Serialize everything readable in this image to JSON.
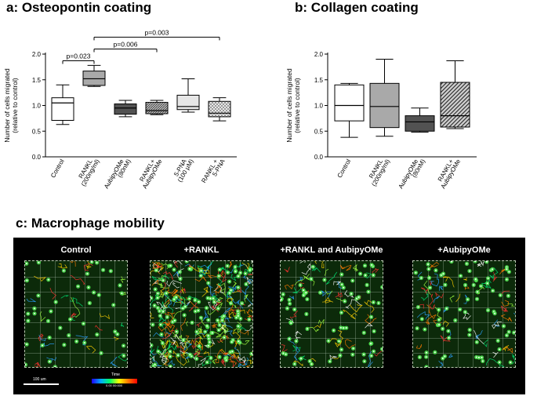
{
  "panel_a": {
    "title": "a: Osteopontin coating"
  },
  "panel_b": {
    "title": "b: Collagen coating"
  },
  "panel_c": {
    "title": "c: Macrophage mobility"
  },
  "chart_data": [
    {
      "type": "boxplot",
      "title": "a: Osteopontin coating",
      "ylabel": "Number of cells migrated (relative to control)",
      "ylim": [
        0,
        2.0
      ],
      "yticks": [
        "0.0",
        "0.5",
        "1.0",
        "1.5",
        "2.0"
      ],
      "categories": [
        "Control",
        "RANKL (200ng/ml)",
        "AubipyOMe (80nM)",
        "RANKL+ AubipyOMe",
        "5-PNA (100 μM)",
        "RANKL + 5-PNA"
      ],
      "boxes": [
        {
          "min": 0.63,
          "q1": 0.71,
          "median": 1.05,
          "q3": 1.15,
          "max": 1.4,
          "fill": "#ffffff"
        },
        {
          "min": 1.37,
          "q1": 1.39,
          "median": 1.52,
          "q3": 1.67,
          "max": 1.78,
          "fill": "#a9a9a9"
        },
        {
          "min": 0.78,
          "q1": 0.83,
          "median": 0.95,
          "q3": 1.03,
          "max": 1.1,
          "fill": "#525252"
        },
        {
          "min": 0.82,
          "q1": 0.84,
          "median": 0.9,
          "q3": 1.06,
          "max": 1.1,
          "fill": "hatch"
        },
        {
          "min": 0.87,
          "q1": 0.92,
          "median": 0.98,
          "q3": 1.2,
          "max": 1.52,
          "fill": "#e6e6e6"
        },
        {
          "min": 0.7,
          "q1": 0.78,
          "median": 0.85,
          "q3": 1.08,
          "max": 1.15,
          "fill": "check"
        }
      ],
      "annotations": [
        {
          "text": "p=0.023",
          "from": 0,
          "to": 1,
          "y": 1.87
        },
        {
          "text": "p=0.006",
          "from": 1,
          "to": 3,
          "y": 2.1
        },
        {
          "text": "p=0.003",
          "from": 1,
          "to": 5,
          "y": 2.33
        }
      ]
    },
    {
      "type": "boxplot",
      "title": "b: Collagen coating",
      "ylabel": "Number of cells migrated (relative to control)",
      "ylim": [
        0,
        2.0
      ],
      "yticks": [
        "0.0",
        "0.5",
        "1.0",
        "1.5",
        "2.0"
      ],
      "categories": [
        "Control",
        "RANKL (200ng/ml)",
        "AubipyOMe (80nM)",
        "RANKL+ AubipyOMe"
      ],
      "boxes": [
        {
          "min": 0.38,
          "q1": 0.7,
          "median": 1.0,
          "q3": 1.4,
          "max": 1.43,
          "fill": "#ffffff"
        },
        {
          "min": 0.4,
          "q1": 0.57,
          "median": 0.98,
          "q3": 1.43,
          "max": 1.9,
          "fill": "#a9a9a9"
        },
        {
          "min": 0.48,
          "q1": 0.5,
          "median": 0.68,
          "q3": 0.8,
          "max": 0.95,
          "fill": "#525252"
        },
        {
          "min": 0.55,
          "q1": 0.58,
          "median": 0.8,
          "q3": 1.45,
          "max": 1.87,
          "fill": "diag"
        }
      ],
      "annotations": []
    }
  ],
  "macrophage": {
    "panels": [
      {
        "label": "Control",
        "cells": 45,
        "tracks": 30
      },
      {
        "label": "+RANKL",
        "cells": 120,
        "tracks": 220
      },
      {
        "label": "+RANKL and AubipyOMe",
        "cells": 70,
        "tracks": 55
      },
      {
        "label": "+AubipyOMe",
        "cells": 75,
        "tracks": 55
      }
    ],
    "scale_label": "100 um",
    "time_title": "Time",
    "time_value": "0.00 00:000"
  }
}
